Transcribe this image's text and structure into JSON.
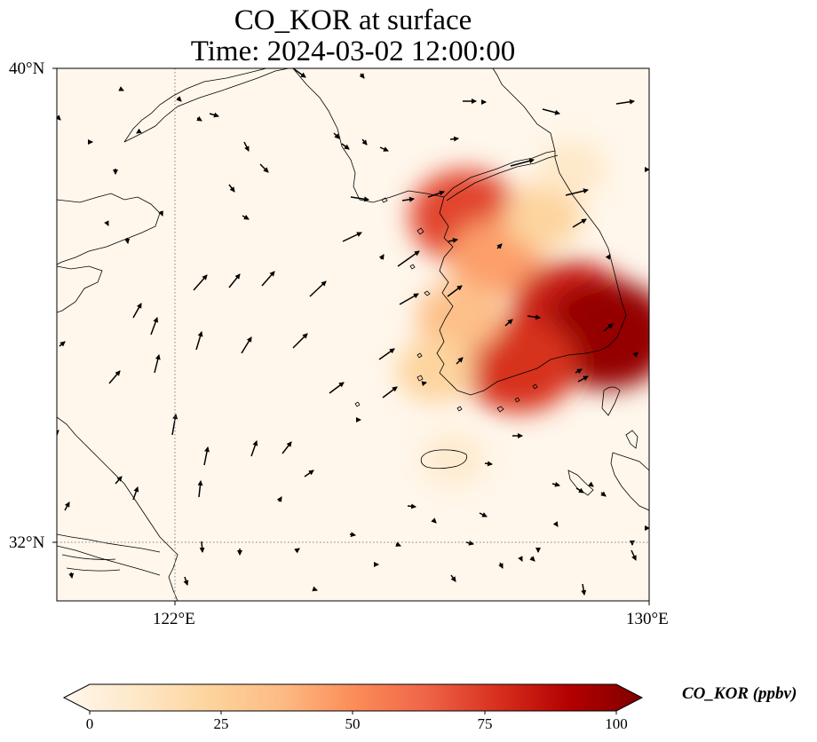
{
  "title": {
    "line1": "CO_KOR at surface",
    "line2": "Time: 2024-03-02 12:00:00"
  },
  "map": {
    "lat_range": [
      31,
      40
    ],
    "lon_range": [
      120,
      130
    ],
    "y_ticks": [
      "40°N",
      "32°N"
    ],
    "x_ticks": [
      "122°E",
      "130°E"
    ],
    "gridlines": "dotted gray at 122°E and 32°N",
    "field": "CO_KOR",
    "hotspots": [
      {
        "lon": 126.9,
        "lat": 37.5,
        "value": 70
      },
      {
        "lon": 127.4,
        "lat": 36.8,
        "value": 45
      },
      {
        "lon": 128.7,
        "lat": 35.9,
        "value": 80
      },
      {
        "lon": 129.3,
        "lat": 35.5,
        "value": 95
      },
      {
        "lon": 127.8,
        "lat": 35.0,
        "value": 75
      },
      {
        "lon": 126.8,
        "lat": 35.8,
        "value": 35
      },
      {
        "lon": 126.4,
        "lat": 34.9,
        "value": 25
      },
      {
        "lon": 128.2,
        "lat": 37.5,
        "value": 25
      },
      {
        "lon": 128.7,
        "lat": 38.3,
        "value": 12
      },
      {
        "lon": 126.7,
        "lat": 33.4,
        "value": 10
      }
    ]
  },
  "colorbar": {
    "label": "CO_KOR (ppbv)",
    "ticks": [
      "0",
      "25",
      "50",
      "75",
      "100"
    ],
    "min": 0,
    "max": 100,
    "colors": [
      "#fff7ec",
      "#fee8c8",
      "#fdd49e",
      "#fdbb84",
      "#fc8d59",
      "#ef6548",
      "#d7301f",
      "#b30000",
      "#7f0000"
    ]
  }
}
